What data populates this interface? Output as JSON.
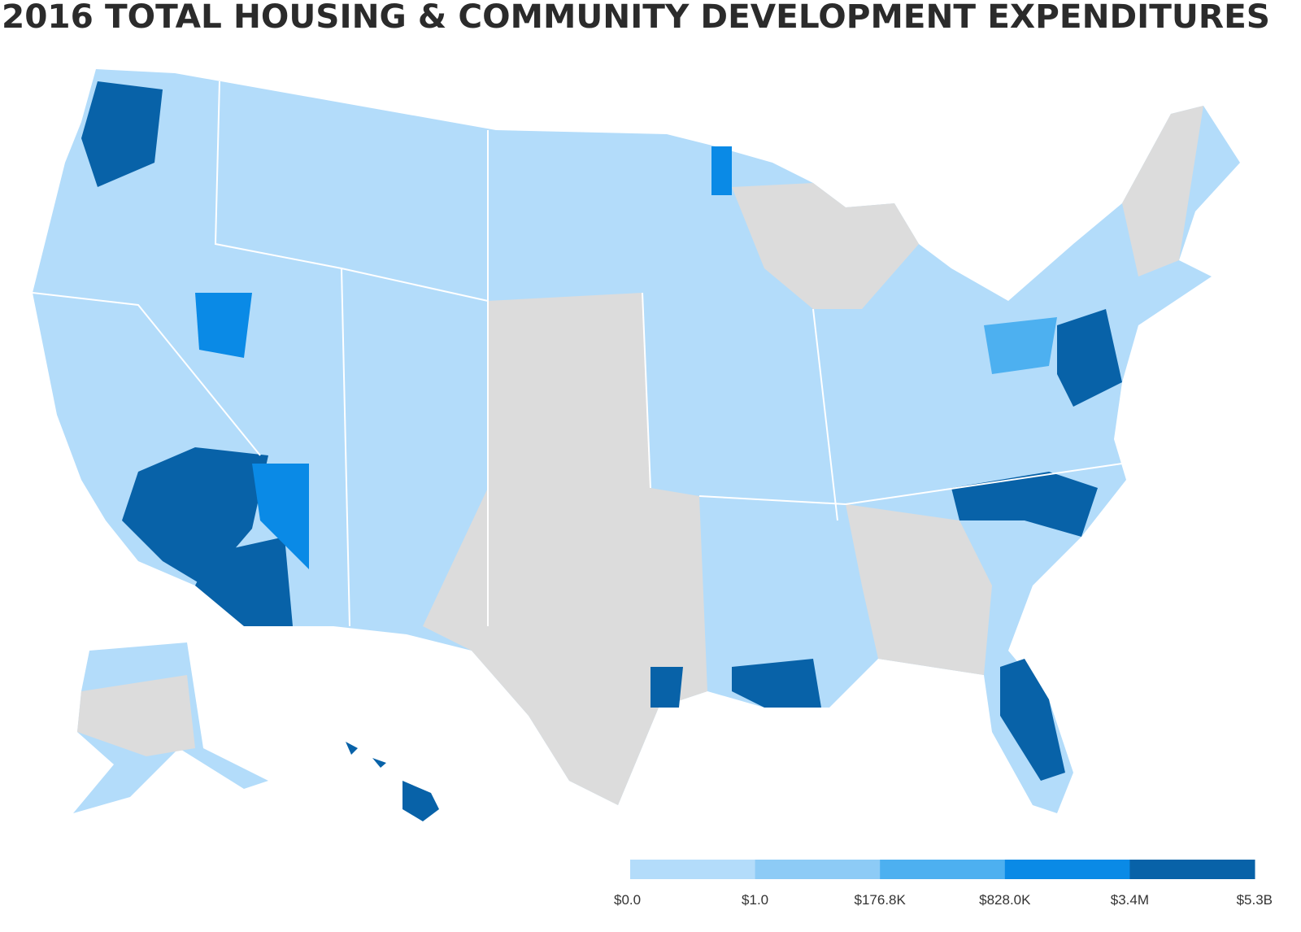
{
  "title": "2016 TOTAL HOUSING & COMMUNITY DEVELOPMENT EXPENDITURES",
  "legend": {
    "colors": [
      "#b3dcfa",
      "#8dcbf6",
      "#4db0f0",
      "#0a8ae6",
      "#0862a8"
    ],
    "breaks": [
      {
        "value": 0,
        "label": "$0.0"
      },
      {
        "value": 1,
        "label": "$1.0"
      },
      {
        "value": 176800,
        "label": "$176.8K"
      },
      {
        "value": 828000,
        "label": "$828.0K"
      },
      {
        "value": 3400000,
        "label": "$3.4M"
      },
      {
        "value": 5300000000,
        "label": "$5.3B"
      }
    ]
  }
}
